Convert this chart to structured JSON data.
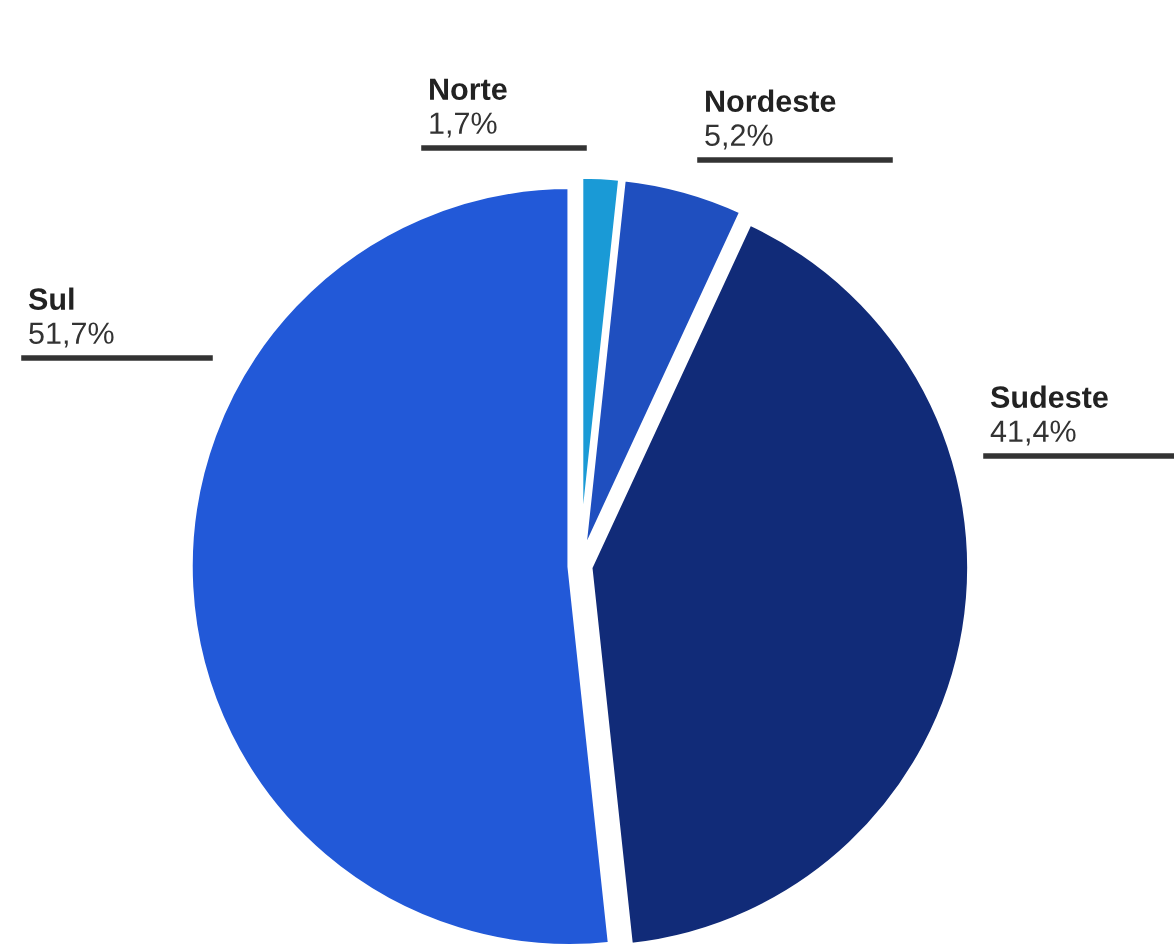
{
  "chart_data": {
    "type": "pie",
    "categories": [
      "Norte",
      "Nordeste",
      "Sudeste",
      "Sul"
    ],
    "values": [
      1.7,
      5.2,
      41.4,
      51.7
    ],
    "value_labels": [
      "1,7%",
      "5,2%",
      "41,4%",
      "51,7%"
    ],
    "colors": [
      "#1a9ad6",
      "#1f4fbf",
      "#112b78",
      "#2259d8"
    ],
    "legend": false
  }
}
